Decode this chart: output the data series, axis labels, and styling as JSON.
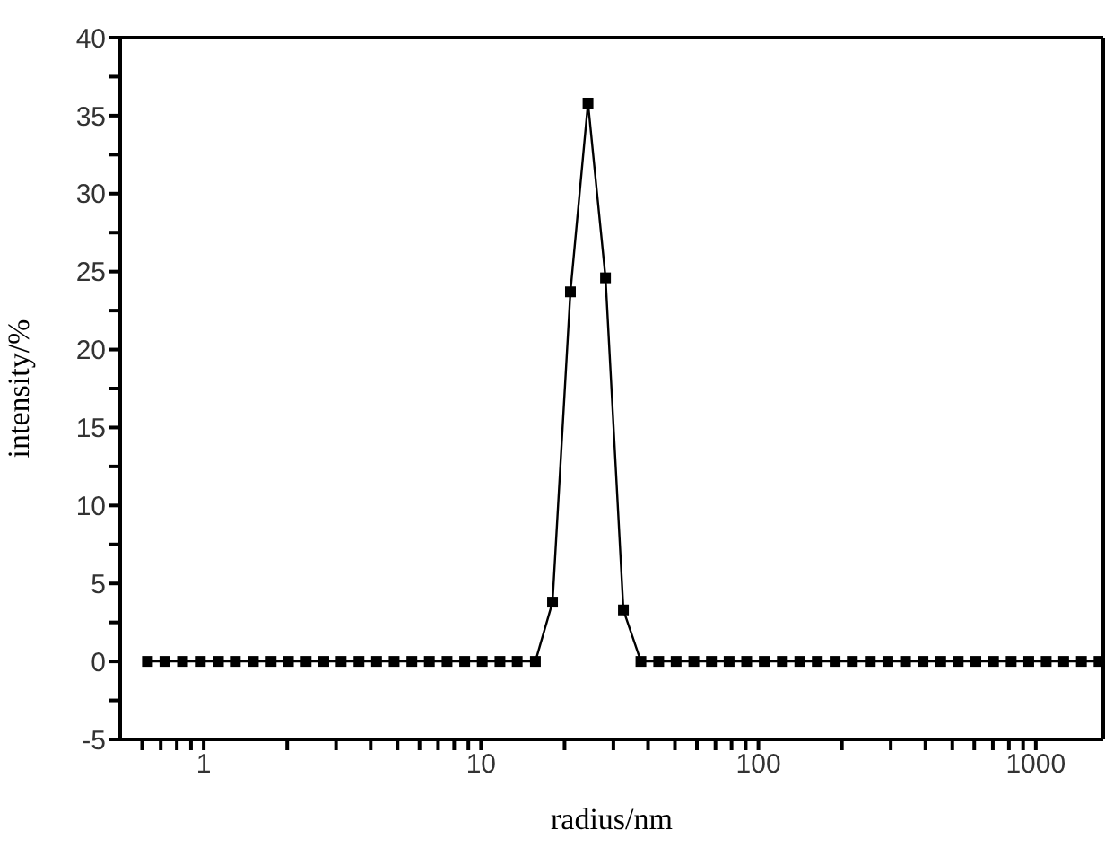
{
  "chart_data": {
    "type": "line",
    "xlabel": "radius/nm",
    "ylabel": "intensity/%",
    "log": "x",
    "grid": false,
    "marker": "square",
    "line_style": "solid",
    "x": [
      0.627,
      0.725,
      0.839,
      0.972,
      1.13,
      1.3,
      1.51,
      1.75,
      2.02,
      2.34,
      2.71,
      3.13,
      3.63,
      4.2,
      4.86,
      5.63,
      6.51,
      7.54,
      8.73,
      10.1,
      11.7,
      13.5,
      15.7,
      18.1,
      21.0,
      24.3,
      28.1,
      32.6,
      37.7,
      43.7,
      50.5,
      58.5,
      67.7,
      78.4,
      90.7,
      105,
      122,
      141,
      163,
      189,
      218,
      253,
      293,
      339,
      392,
      454,
      525,
      608,
      704,
      815,
      943,
      1090,
      1260,
      1460,
      1690
    ],
    "series": [
      {
        "color": "#000000",
        "values": [
          0,
          0,
          0,
          0,
          0,
          0,
          0,
          0,
          0,
          0,
          0,
          0,
          0,
          0,
          0,
          0,
          0,
          0,
          0,
          0,
          0,
          0,
          0,
          3.8,
          23.7,
          35.8,
          24.6,
          3.3,
          0,
          0,
          0,
          0,
          0,
          0,
          0,
          0,
          0,
          0,
          0,
          0,
          0,
          0,
          0,
          0,
          0,
          0,
          0,
          0,
          0,
          0,
          0,
          0,
          0,
          0,
          0
        ]
      }
    ],
    "xlim": [
      0.5,
      1750
    ],
    "xticks": [
      {
        "value": 0.6,
        "label": null
      },
      {
        "value": 0.7,
        "label": null
      },
      {
        "value": 0.8,
        "label": null
      },
      {
        "value": 0.9,
        "label": null
      },
      1,
      {
        "value": 2,
        "label": null
      },
      {
        "value": 3,
        "label": null
      },
      {
        "value": 4,
        "label": null
      },
      {
        "value": 5,
        "label": null
      },
      {
        "value": 6,
        "label": null
      },
      {
        "value": 7,
        "label": null
      },
      {
        "value": 8,
        "label": null
      },
      {
        "value": 9,
        "label": null
      },
      10,
      {
        "value": 20,
        "label": null
      },
      {
        "value": 30,
        "label": null
      },
      {
        "value": 40,
        "label": null
      },
      {
        "value": 50,
        "label": null
      },
      {
        "value": 60,
        "label": null
      },
      {
        "value": 70,
        "label": null
      },
      {
        "value": 80,
        "label": null
      },
      {
        "value": 90,
        "label": null
      },
      100,
      {
        "value": 200,
        "label": null
      },
      {
        "value": 300,
        "label": null
      },
      {
        "value": 400,
        "label": null
      },
      {
        "value": 500,
        "label": null
      },
      {
        "value": 600,
        "label": null
      },
      {
        "value": 700,
        "label": null
      },
      {
        "value": 800,
        "label": null
      },
      {
        "value": 900,
        "label": null
      },
      1000
    ],
    "ylim": [
      -5,
      40
    ],
    "yticks": [
      -5,
      {
        "value": -2.5,
        "label": null
      },
      0,
      {
        "value": 2.5,
        "label": null
      },
      5,
      {
        "value": 7.5,
        "label": null
      },
      10,
      {
        "value": 12.5,
        "label": null
      },
      15,
      {
        "value": 17.5,
        "label": null
      },
      20,
      {
        "value": 22.5,
        "label": null
      },
      25,
      {
        "value": 27.5,
        "label": null
      },
      30,
      {
        "value": 32.5,
        "label": null
      },
      35,
      {
        "value": 37.5,
        "label": null
      },
      40
    ]
  }
}
